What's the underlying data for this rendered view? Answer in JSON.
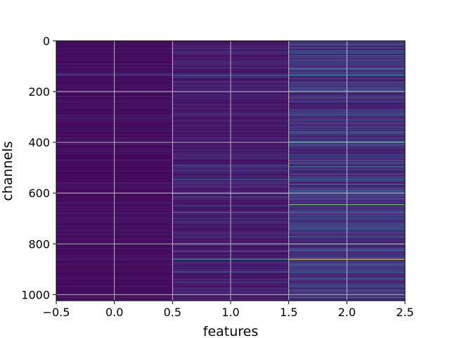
{
  "chart_data": {
    "type": "heatmap",
    "title": "",
    "xlabel": "features",
    "ylabel": "channels",
    "xlim": [
      -0.5,
      2.5
    ],
    "ylim": [
      1024,
      0
    ],
    "y_inverted": true,
    "x_ticks": [
      -0.5,
      0.0,
      0.5,
      1.0,
      1.5,
      2.0,
      2.5
    ],
    "x_tick_labels": [
      "−0.5",
      "0.0",
      "0.5",
      "1.0",
      "1.5",
      "2.0",
      "2.5"
    ],
    "y_ticks": [
      0,
      200,
      400,
      600,
      800,
      1000
    ],
    "y_tick_labels": [
      "0",
      "200",
      "400",
      "600",
      "800",
      "1000"
    ],
    "grid": true,
    "colormap": "viridis",
    "colors": {
      "background": "#440154",
      "grid": "#d9d9d9"
    },
    "columns": [
      {
        "feature": 0,
        "base_value": 0.05,
        "highlights": [
          {
            "channel": 130,
            "value": 0.25
          },
          {
            "channel": 136,
            "value": 0.22
          },
          {
            "channel": 220,
            "value": 0.12
          },
          {
            "channel": 290,
            "value": 0.1
          },
          {
            "channel": 560,
            "value": 0.1
          },
          {
            "channel": 640,
            "value": 0.1
          },
          {
            "channel": 700,
            "value": 0.08
          },
          {
            "channel": 860,
            "value": 0.12
          }
        ]
      },
      {
        "feature": 1,
        "base_value": 0.1,
        "highlights": [
          {
            "channel": 135,
            "value": 0.45
          },
          {
            "channel": 160,
            "value": 0.2
          },
          {
            "channel": 490,
            "value": 0.35
          },
          {
            "channel": 510,
            "value": 0.3
          },
          {
            "channel": 545,
            "value": 0.35
          },
          {
            "channel": 560,
            "value": 0.25
          },
          {
            "channel": 575,
            "value": 0.25
          },
          {
            "channel": 600,
            "value": 0.25
          },
          {
            "channel": 615,
            "value": 0.3
          },
          {
            "channel": 650,
            "value": 0.3
          },
          {
            "channel": 675,
            "value": 0.55
          },
          {
            "channel": 700,
            "value": 0.25
          },
          {
            "channel": 830,
            "value": 0.35
          },
          {
            "channel": 860,
            "value": 0.7
          },
          {
            "channel": 910,
            "value": 0.4
          },
          {
            "channel": 950,
            "value": 0.25
          }
        ]
      },
      {
        "feature": 2,
        "base_value": 0.18,
        "highlights": [
          {
            "channel": 15,
            "value": 0.4
          },
          {
            "channel": 40,
            "value": 0.35
          },
          {
            "channel": 60,
            "value": 0.3
          },
          {
            "channel": 75,
            "value": 0.35
          },
          {
            "channel": 110,
            "value": 0.65
          },
          {
            "channel": 135,
            "value": 0.7
          },
          {
            "channel": 165,
            "value": 0.4
          },
          {
            "channel": 200,
            "value": 0.35
          },
          {
            "channel": 240,
            "value": 0.3
          },
          {
            "channel": 290,
            "value": 0.35
          },
          {
            "channel": 325,
            "value": 0.3
          },
          {
            "channel": 360,
            "value": 0.45
          },
          {
            "channel": 395,
            "value": 0.5
          },
          {
            "channel": 410,
            "value": 0.35
          },
          {
            "channel": 450,
            "value": 0.3
          },
          {
            "channel": 470,
            "value": 0.4
          },
          {
            "channel": 495,
            "value": 0.45
          },
          {
            "channel": 525,
            "value": 0.4
          },
          {
            "channel": 545,
            "value": 0.45
          },
          {
            "channel": 565,
            "value": 0.55
          },
          {
            "channel": 590,
            "value": 0.4
          },
          {
            "channel": 620,
            "value": 0.35
          },
          {
            "channel": 645,
            "value": 0.85
          },
          {
            "channel": 675,
            "value": 0.5
          },
          {
            "channel": 700,
            "value": 0.3
          },
          {
            "channel": 740,
            "value": 0.35
          },
          {
            "channel": 770,
            "value": 0.4
          },
          {
            "channel": 800,
            "value": 0.35
          },
          {
            "channel": 825,
            "value": 0.45
          },
          {
            "channel": 860,
            "value": 0.95
          },
          {
            "channel": 880,
            "value": 0.45
          },
          {
            "channel": 910,
            "value": 0.4
          },
          {
            "channel": 935,
            "value": 0.35
          },
          {
            "channel": 965,
            "value": 0.45
          },
          {
            "channel": 985,
            "value": 0.4
          },
          {
            "channel": 1010,
            "value": 0.35
          }
        ]
      }
    ]
  }
}
